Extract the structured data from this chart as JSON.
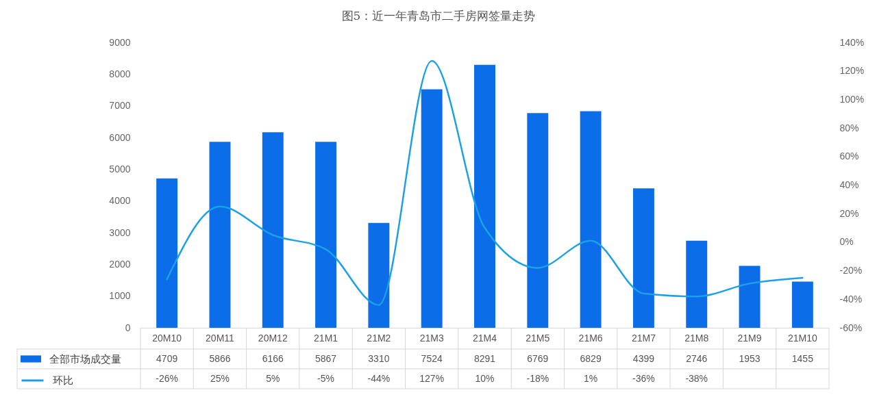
{
  "chart_data": {
    "type": "bar",
    "title": "图5：近一年青岛市二手房网签量走势",
    "categories": [
      "20M10",
      "20M11",
      "20M12",
      "21M1",
      "21M2",
      "21M3",
      "21M4",
      "21M5",
      "21M6",
      "21M7",
      "21M8",
      "21M9",
      "21M10"
    ],
    "series": [
      {
        "name": "全部市场成交量",
        "color": "#0b6de8",
        "values": [
          4709,
          5866,
          6166,
          5867,
          3310,
          7524,
          8291,
          6769,
          6829,
          4399,
          2746,
          1953,
          1455
        ],
        "value_labels": [
          "4709",
          "5866",
          "6166",
          "5867",
          "3310",
          "7524",
          "8291",
          "6769",
          "6829",
          "4399",
          "2746",
          "1953",
          "1455"
        ]
      },
      {
        "name": "环比",
        "type": "line",
        "axis": "y2",
        "color": "#1da1e6",
        "values": [
          -26,
          25,
          5,
          -5,
          -44,
          127,
          10,
          -18,
          1,
          -36,
          -38,
          -29,
          -25
        ],
        "value_labels": [
          "-26%",
          "25%",
          "5%",
          "-5%",
          "-44%",
          "127%",
          "10%",
          "-18%",
          "1%",
          "-36%",
          "-38%",
          null,
          null
        ]
      }
    ],
    "ylim": [
      0,
      9000
    ],
    "yticks": [
      0,
      1000,
      2000,
      3000,
      4000,
      5000,
      6000,
      7000,
      8000,
      9000
    ],
    "y2lim": [
      -60,
      140
    ],
    "y2ticks": [
      {
        "value": -60,
        "label": "-60%"
      },
      {
        "value": -40,
        "label": "-40%"
      },
      {
        "value": -20,
        "label": "-20%"
      },
      {
        "value": 0,
        "label": "0%"
      },
      {
        "value": 20,
        "label": "20%"
      },
      {
        "value": 40,
        "label": "40%"
      },
      {
        "value": 60,
        "label": "60%"
      },
      {
        "value": 80,
        "label": "80%"
      },
      {
        "value": 100,
        "label": "100%"
      },
      {
        "value": 120,
        "label": "120%"
      },
      {
        "value": 140,
        "label": "140%"
      }
    ],
    "legend": "bottom left",
    "grid": false
  }
}
